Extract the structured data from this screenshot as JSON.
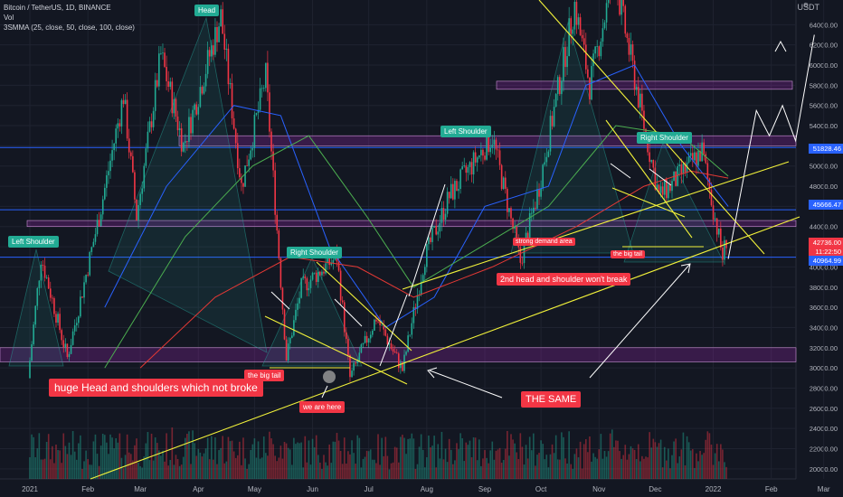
{
  "header": {
    "title": "Bitcoin / TetherUS, 1D, BINANCE",
    "line2": "Vol",
    "line3": "3SMMA (25, close, 50, close, 100, close)"
  },
  "currency": "USDT",
  "colors": {
    "background": "#131722",
    "teal": "#22ab94",
    "red": "#f23645",
    "yellow": "#f2f23a",
    "blue": "#2962ff",
    "green": "#4caf50",
    "purple_zone": "#9c27b0"
  },
  "annotations": {
    "head": "Head",
    "left_shoulder_1": "Left Shoulder",
    "right_shoulder_1": "Right Shoulder",
    "left_shoulder_2": "Left Shoulder",
    "right_shoulder_2": "Right Shoulder",
    "huge_hs": "huge Head and shoulders which not broke",
    "big_tail_1": "the big tail",
    "big_tail_2": "the big tail",
    "we_are_here": "we are here",
    "the_same": "THE SAME",
    "second_hs": "2nd head and shoulder won't break",
    "strong_demand": "strong demand area"
  },
  "price_badges": {
    "level_blue_top": "51828.46",
    "level_blue_mid": "45666.47",
    "current_price": "42736.00",
    "countdown": "11:22:50",
    "level_low": "40964.99"
  },
  "chart_data": {
    "type": "candlestick",
    "symbol": "BTCUSDT",
    "timeframe": "1D",
    "y_axis": {
      "ticks": [
        20000,
        22000,
        24000,
        26000,
        28000,
        30000,
        32000,
        34000,
        36000,
        38000,
        40000,
        42000,
        44000,
        46000,
        48000,
        50000,
        52000,
        54000,
        56000,
        58000,
        60000,
        62000,
        64000
      ],
      "tick_labels": [
        "20000.00",
        "22000.00",
        "24000.00",
        "26000.00",
        "28000.00",
        "30000.00",
        "32000.00",
        "34000.00",
        "36000.00",
        "38000.00",
        "40000.00",
        "42000.00",
        "44000.00",
        "46000.00",
        "48000.00",
        "50000.00",
        "52000.00",
        "54000.00",
        "56000.00",
        "58000.00",
        "60000.00",
        "62000.00",
        "64000.00"
      ],
      "range": [
        19000,
        66000
      ]
    },
    "x_axis": {
      "tick_labels": [
        "2021",
        "Feb",
        "Mar",
        "Apr",
        "May",
        "Jun",
        "Jul",
        "Aug",
        "Sep",
        "Oct",
        "Nov",
        "Dec",
        "2022",
        "Feb",
        "Mar"
      ]
    },
    "price_path": [
      {
        "date": "2021-01-01",
        "price": 29000
      },
      {
        "date": "2021-01-08",
        "price": 41000
      },
      {
        "date": "2021-01-22",
        "price": 31000
      },
      {
        "date": "2021-02-08",
        "price": 45000
      },
      {
        "date": "2021-02-21",
        "price": 57000
      },
      {
        "date": "2021-02-28",
        "price": 45000
      },
      {
        "date": "2021-03-13",
        "price": 61000
      },
      {
        "date": "2021-03-25",
        "price": 52000
      },
      {
        "date": "2021-04-14",
        "price": 64800
      },
      {
        "date": "2021-04-25",
        "price": 48000
      },
      {
        "date": "2021-05-08",
        "price": 58900
      },
      {
        "date": "2021-05-19",
        "price": 31000
      },
      {
        "date": "2021-05-27",
        "price": 38000
      },
      {
        "date": "2021-06-15",
        "price": 41000
      },
      {
        "date": "2021-06-22",
        "price": 29000
      },
      {
        "date": "2021-07-06",
        "price": 35000
      },
      {
        "date": "2021-07-20",
        "price": 29800
      },
      {
        "date": "2021-08-01",
        "price": 41000
      },
      {
        "date": "2021-08-14",
        "price": 47000
      },
      {
        "date": "2021-09-06",
        "price": 52900
      },
      {
        "date": "2021-09-21",
        "price": 40500
      },
      {
        "date": "2021-10-01",
        "price": 48000
      },
      {
        "date": "2021-10-20",
        "price": 66000
      },
      {
        "date": "2021-10-28",
        "price": 58000
      },
      {
        "date": "2021-11-10",
        "price": 69000
      },
      {
        "date": "2021-11-26",
        "price": 54000
      },
      {
        "date": "2021-12-04",
        "price": 47000
      },
      {
        "date": "2021-12-10",
        "price": 48000
      },
      {
        "date": "2021-12-27",
        "price": 51500
      },
      {
        "date": "2022-01-07",
        "price": 41000
      },
      {
        "date": "2022-01-09",
        "price": 42736
      }
    ],
    "horizontal_levels": [
      51828.46,
      45666.47,
      40964.99
    ],
    "zones": [
      {
        "from": 30600,
        "to": 32000
      },
      {
        "from": 44000,
        "to": 44600
      },
      {
        "from": 52000,
        "to": 53000
      },
      {
        "from": 57600,
        "to": 58400
      }
    ],
    "projection": [
      {
        "date": "2022-01-09",
        "price": 40800
      },
      {
        "date": "2022-01-24",
        "price": 55500
      },
      {
        "date": "2022-01-31",
        "price": 53000
      },
      {
        "date": "2022-02-07",
        "price": 56000
      },
      {
        "date": "2022-02-14",
        "price": 52500
      },
      {
        "date": "2022-02-24",
        "price": 63000
      }
    ],
    "current_price": 42736.0,
    "grid": true,
    "legend": "top-left"
  }
}
